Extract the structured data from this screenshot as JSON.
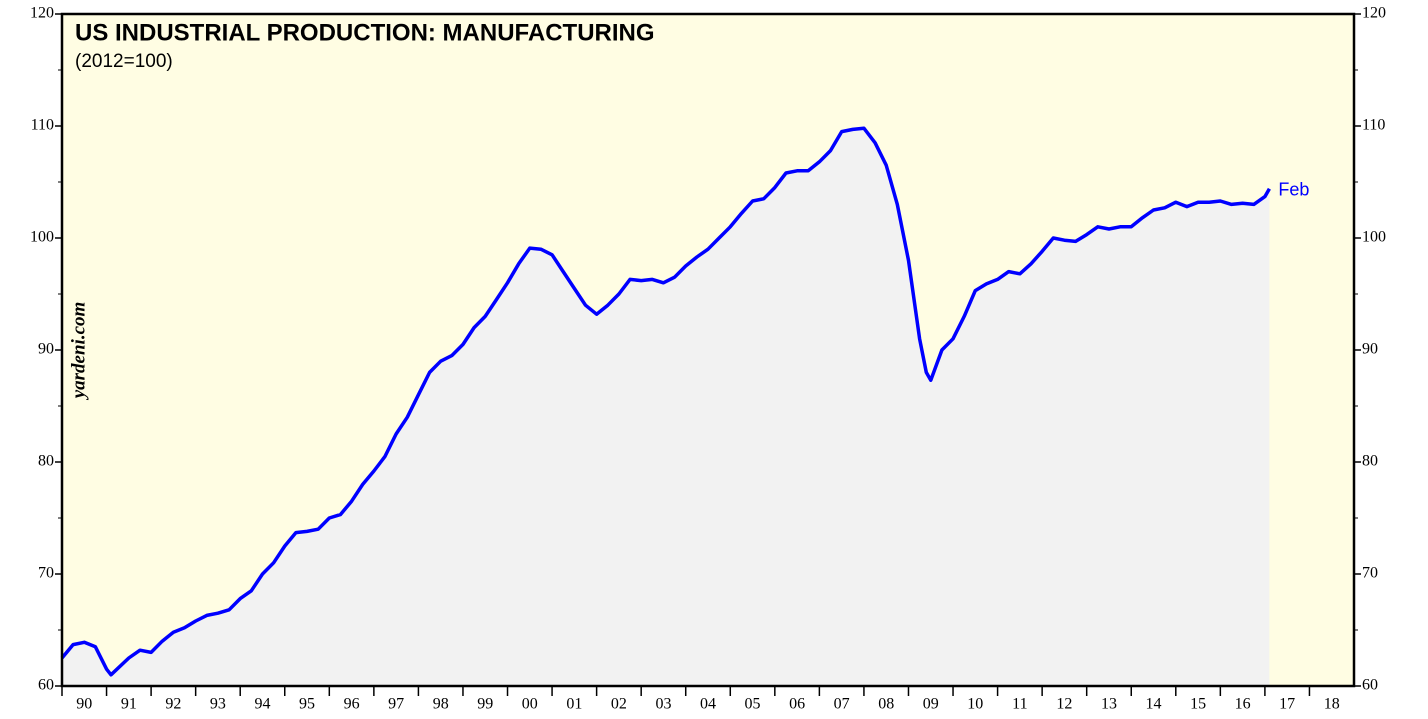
{
  "chart_data": {
    "type": "line",
    "title": "US INDUSTRIAL PRODUCTION: MANUFACTURING",
    "subtitle": "(2012=100)",
    "source": "yardeni.com",
    "annotation": "Feb",
    "x": [
      1990.0,
      1990.25,
      1990.5,
      1990.75,
      1991.0,
      1991.1,
      1991.5,
      1991.75,
      1992.0,
      1992.25,
      1992.5,
      1992.75,
      1993.0,
      1993.25,
      1993.5,
      1993.75,
      1994.0,
      1994.25,
      1994.5,
      1994.75,
      1995.0,
      1995.25,
      1995.5,
      1995.75,
      1996.0,
      1996.25,
      1996.5,
      1996.75,
      1997.0,
      1997.25,
      1997.5,
      1997.75,
      1998.0,
      1998.25,
      1998.5,
      1998.75,
      1999.0,
      1999.25,
      1999.5,
      1999.75,
      2000.0,
      2000.25,
      2000.5,
      2000.75,
      2001.0,
      2001.25,
      2001.5,
      2001.75,
      2002.0,
      2002.25,
      2002.5,
      2002.75,
      2003.0,
      2003.25,
      2003.5,
      2003.75,
      2004.0,
      2004.25,
      2004.5,
      2004.75,
      2005.0,
      2005.25,
      2005.5,
      2005.75,
      2006.0,
      2006.25,
      2006.5,
      2006.75,
      2007.0,
      2007.25,
      2007.5,
      2007.75,
      2008.0,
      2008.25,
      2008.5,
      2008.75,
      2009.0,
      2009.25,
      2009.4,
      2009.5,
      2009.75,
      2010.0,
      2010.25,
      2010.5,
      2010.75,
      2011.0,
      2011.25,
      2011.5,
      2011.75,
      2012.0,
      2012.25,
      2012.5,
      2012.75,
      2013.0,
      2013.25,
      2013.5,
      2013.75,
      2014.0,
      2014.25,
      2014.5,
      2014.75,
      2015.0,
      2015.25,
      2015.5,
      2015.75,
      2016.0,
      2016.25,
      2016.5,
      2016.75,
      2017.0,
      2017.1
    ],
    "series": [
      {
        "color": "#0000ff",
        "values": [
          62.5,
          63.7,
          63.9,
          63.5,
          61.5,
          61.0,
          62.5,
          63.2,
          63.0,
          64.0,
          64.8,
          65.2,
          65.8,
          66.3,
          66.5,
          66.8,
          67.8,
          68.5,
          70.0,
          71.0,
          72.5,
          73.7,
          73.8,
          74.0,
          75.0,
          75.3,
          76.5,
          78.0,
          79.2,
          80.5,
          82.5,
          84.0,
          86.0,
          88.0,
          89.0,
          89.5,
          90.5,
          92.0,
          93.0,
          94.5,
          96.0,
          97.7,
          99.1,
          99.0,
          98.5,
          97.0,
          95.5,
          94.0,
          93.2,
          94.0,
          95.0,
          96.3,
          96.2,
          96.3,
          96.0,
          96.5,
          97.5,
          98.3,
          99.0,
          100.0,
          101.0,
          102.2,
          103.3,
          103.5,
          104.5,
          105.8,
          106.0,
          106.0,
          106.8,
          107.8,
          109.5,
          109.7,
          109.8,
          108.5,
          106.5,
          103.0,
          98.0,
          91.0,
          88.0,
          87.3,
          90.0,
          91.0,
          93.0,
          95.3,
          95.9,
          96.3,
          97.0,
          96.8,
          97.7,
          98.8,
          100.0,
          99.8,
          99.7,
          100.3,
          101.0,
          100.8,
          101.0,
          101.0,
          101.8,
          102.5,
          102.7,
          103.2,
          102.8,
          103.2,
          103.2,
          103.3,
          103.0,
          103.1,
          103.0,
          103.7,
          104.4
        ]
      }
    ],
    "xlim": [
      1990,
      2019
    ],
    "xticks": [
      {
        "value": 1990,
        "label": "90"
      },
      {
        "value": 1991,
        "label": "91"
      },
      {
        "value": 1992,
        "label": "92"
      },
      {
        "value": 1993,
        "label": "93"
      },
      {
        "value": 1994,
        "label": "94"
      },
      {
        "value": 1995,
        "label": "95"
      },
      {
        "value": 1996,
        "label": "96"
      },
      {
        "value": 1997,
        "label": "97"
      },
      {
        "value": 1998,
        "label": "98"
      },
      {
        "value": 1999,
        "label": "99"
      },
      {
        "value": 2000,
        "label": "00"
      },
      {
        "value": 2001,
        "label": "01"
      },
      {
        "value": 2002,
        "label": "02"
      },
      {
        "value": 2003,
        "label": "03"
      },
      {
        "value": 2004,
        "label": "04"
      },
      {
        "value": 2005,
        "label": "05"
      },
      {
        "value": 2006,
        "label": "06"
      },
      {
        "value": 2007,
        "label": "07"
      },
      {
        "value": 2008,
        "label": "08"
      },
      {
        "value": 2009,
        "label": "09"
      },
      {
        "value": 2010,
        "label": "10"
      },
      {
        "value": 2011,
        "label": "11"
      },
      {
        "value": 2012,
        "label": "12"
      },
      {
        "value": 2013,
        "label": "13"
      },
      {
        "value": 2014,
        "label": "14"
      },
      {
        "value": 2015,
        "label": "15"
      },
      {
        "value": 2016,
        "label": "16"
      },
      {
        "value": 2017,
        "label": "17"
      },
      {
        "value": 2018,
        "label": "18"
      }
    ],
    "ylim": [
      60,
      120
    ],
    "yticks": [
      60,
      70,
      80,
      90,
      100,
      110,
      120
    ],
    "background": "#fffde3",
    "area_color": "#f2f2f2"
  }
}
